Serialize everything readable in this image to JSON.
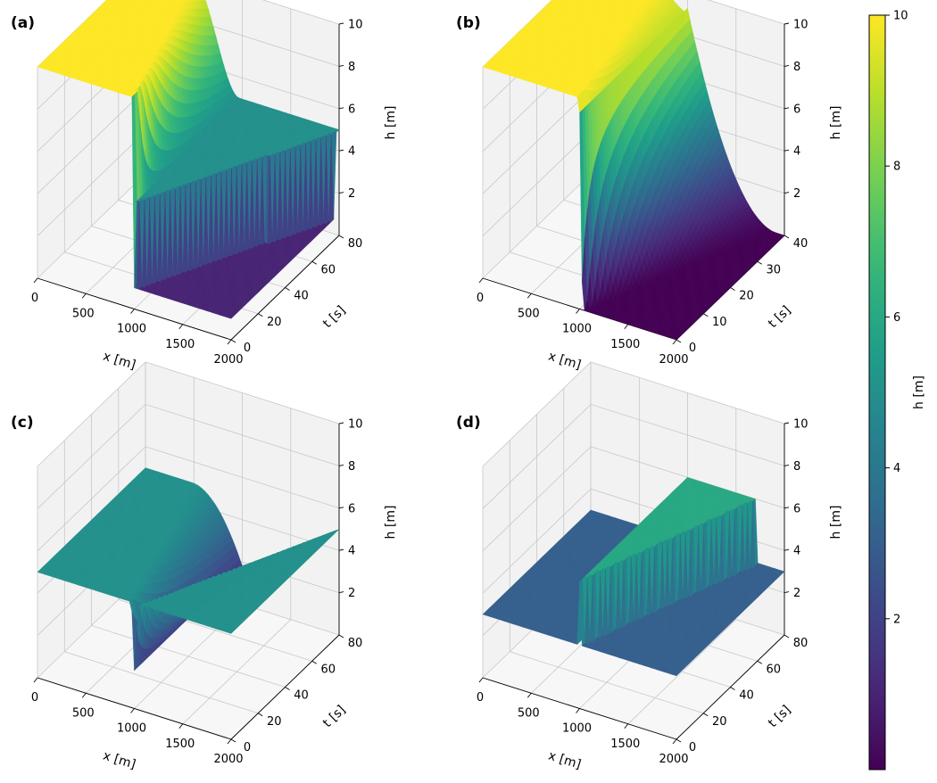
{
  "colormap": {
    "name": "viridis",
    "stops": [
      "#440154",
      "#482878",
      "#3e4989",
      "#31688e",
      "#26828e",
      "#1f9e89",
      "#35b779",
      "#6ece58",
      "#b5de2b",
      "#fde725"
    ]
  },
  "pane_colors": {
    "wall": "#f2f2f2",
    "floor": "#f7f7f7",
    "grid": "#c8c8c8"
  },
  "colorbar": {
    "label": "h  [m]",
    "min": 0,
    "max": 10,
    "ticks": [
      "2",
      "4",
      "6",
      "8",
      "10"
    ]
  },
  "chart_data": [
    {
      "panel": "(a)",
      "type": "surface",
      "xlabel": "x  [m]",
      "ylabel": "t  [s]",
      "zlabel": "h  [m]",
      "xlim": [
        0,
        2000
      ],
      "ylim": [
        0,
        80
      ],
      "zlim": [
        0,
        10
      ],
      "xticks": [
        "0",
        "500",
        "1000",
        "1500",
        "2000"
      ],
      "yticks": [
        "0",
        "20",
        "40",
        "60",
        "80"
      ],
      "zticks": [
        "2",
        "4",
        "6",
        "8",
        "10"
      ],
      "dam_position": 1000,
      "h_left": 10,
      "h_right": 1,
      "h_shock": 5,
      "t_max": 80
    },
    {
      "panel": "(b)",
      "type": "surface",
      "xlabel": "x  [m]",
      "ylabel": "t  [s]",
      "zlabel": "h  [m]",
      "xlim": [
        0,
        2000
      ],
      "ylim": [
        0,
        40
      ],
      "zlim": [
        0,
        10
      ],
      "xticks": [
        "0",
        "500",
        "1000",
        "1500",
        "2000"
      ],
      "yticks": [
        "0",
        "10",
        "20",
        "30",
        "40"
      ],
      "zticks": [
        "2",
        "4",
        "6",
        "8",
        "10"
      ],
      "dam_position": 1000,
      "h_left": 10,
      "h_right": 0,
      "t_max": 40
    },
    {
      "panel": "(c)",
      "type": "surface",
      "xlabel": "x  [m]",
      "ylabel": "t  [s]",
      "zlabel": "h  [m]",
      "xlim": [
        0,
        2000
      ],
      "ylim": [
        0,
        80
      ],
      "zlim": [
        0,
        10
      ],
      "xticks": [
        "0",
        "500",
        "1000",
        "1500",
        "2000"
      ],
      "yticks": [
        "0",
        "20",
        "40",
        "60",
        "80"
      ],
      "zticks": [
        "2",
        "4",
        "6",
        "8",
        "10"
      ],
      "dam_position": 1000,
      "h_left": 5,
      "h_right": 5,
      "h_min": 1.8,
      "t_max": 80
    },
    {
      "panel": "(d)",
      "type": "surface",
      "xlabel": "x  [m]",
      "ylabel": "t  [s]",
      "zlabel": "h  [m]",
      "xlim": [
        0,
        2000
      ],
      "ylim": [
        0,
        80
      ],
      "zlim": [
        0,
        10
      ],
      "xticks": [
        "0",
        "500",
        "1000",
        "1500",
        "2000"
      ],
      "yticks": [
        "0",
        "20",
        "40",
        "60",
        "80"
      ],
      "zticks": [
        "2",
        "4",
        "6",
        "8",
        "10"
      ],
      "dam_position": 1000,
      "h_base": 3,
      "h_peak": 6,
      "t_max": 80
    }
  ]
}
